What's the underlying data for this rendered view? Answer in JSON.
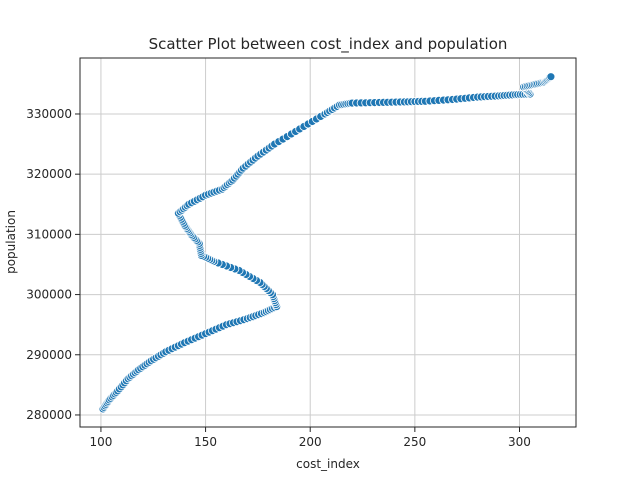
{
  "chart_data": {
    "type": "scatter",
    "title": "Scatter Plot between cost_index and population",
    "xlabel": "cost_index",
    "ylabel": "population",
    "xlim": [
      90,
      327
    ],
    "ylim": [
      278000,
      339300
    ],
    "xticks": [
      100,
      150,
      200,
      250,
      300
    ],
    "xtick_labels": [
      "100",
      "150",
      "200",
      "250",
      "300"
    ],
    "yticks": [
      280000,
      290000,
      300000,
      310000,
      320000,
      330000
    ],
    "ytick_labels": [
      "280000",
      "290000",
      "300000",
      "310000",
      "320000",
      "330000"
    ],
    "grid": true,
    "marker_color": "#1f77b4",
    "marker_edge_color": "#ffffff",
    "path": [
      [
        101,
        281000
      ],
      [
        104,
        282500
      ],
      [
        108,
        284000
      ],
      [
        113,
        286000
      ],
      [
        118,
        287500
      ],
      [
        124,
        289000
      ],
      [
        131,
        290500
      ],
      [
        140,
        292000
      ],
      [
        150,
        293500
      ],
      [
        160,
        295000
      ],
      [
        170,
        296000
      ],
      [
        178,
        297000
      ],
      [
        184,
        298000
      ],
      [
        182,
        300000
      ],
      [
        176,
        302000
      ],
      [
        166,
        304000
      ],
      [
        154,
        305500
      ],
      [
        148,
        306500
      ],
      [
        147,
        308500
      ],
      [
        143,
        310000
      ],
      [
        140,
        311500
      ],
      [
        137,
        313500
      ],
      [
        142,
        315000
      ],
      [
        150,
        316500
      ],
      [
        158,
        317500
      ],
      [
        163,
        319000
      ],
      [
        168,
        321000
      ],
      [
        175,
        323000
      ],
      [
        183,
        325000
      ],
      [
        195,
        327500
      ],
      [
        207,
        330000
      ],
      [
        214,
        331500
      ],
      [
        220,
        331800
      ],
      [
        233,
        331900
      ],
      [
        245,
        332000
      ],
      [
        255,
        332100
      ],
      [
        268,
        332400
      ],
      [
        280,
        332800
      ],
      [
        290,
        333000
      ],
      [
        298,
        333200
      ],
      [
        305,
        333300
      ],
      [
        302,
        334500
      ],
      [
        307,
        334900
      ],
      [
        312,
        335300
      ],
      [
        315,
        336200
      ]
    ],
    "samples_per_segment": 6
  }
}
